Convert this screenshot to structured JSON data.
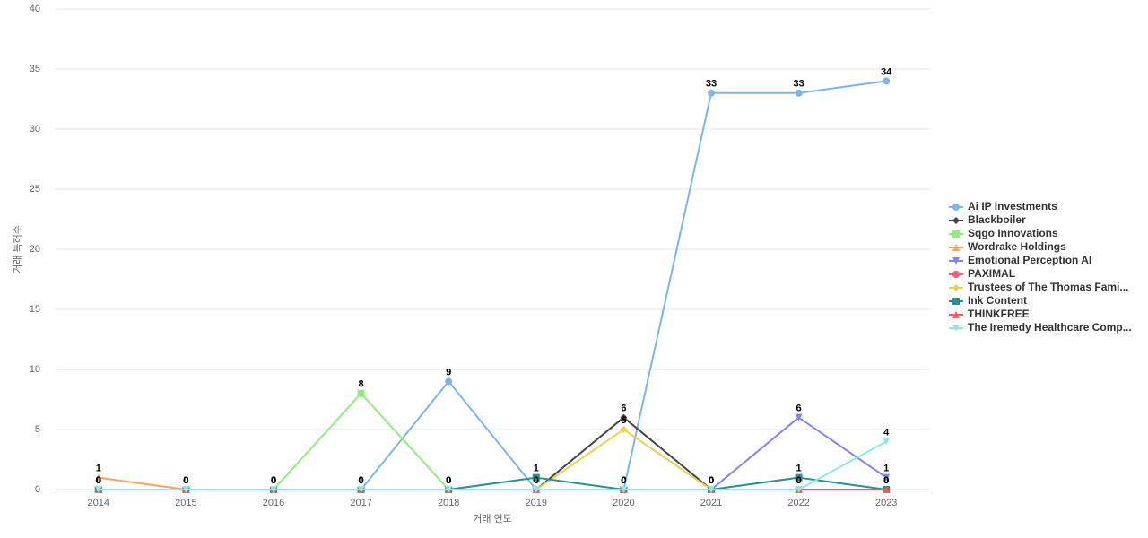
{
  "chart_data": {
    "type": "line",
    "x_label": "거래 연도",
    "y_label": "거래 특허수",
    "categories": [
      "2014",
      "2015",
      "2016",
      "2017",
      "2018",
      "2019",
      "2020",
      "2021",
      "2022",
      "2023"
    ],
    "ylim": [
      0,
      40
    ],
    "yticks": [
      0,
      5,
      10,
      15,
      20,
      25,
      30,
      35,
      40
    ],
    "grid": true,
    "legend": "right",
    "series": [
      {
        "name": "Ai IP Investments",
        "color": "#7cb5ec",
        "marker": "circle",
        "values": [
          0,
          0,
          0,
          0,
          9,
          0,
          0,
          33,
          33,
          34
        ]
      },
      {
        "name": "Blackboiler",
        "color": "#434348",
        "marker": "diamond",
        "values": [
          0,
          0,
          0,
          0,
          0,
          0,
          6,
          0,
          0,
          0
        ]
      },
      {
        "name": "Sqgo Innovations",
        "color": "#90ed7d",
        "marker": "square",
        "values": [
          0,
          0,
          0,
          8,
          0,
          0,
          0,
          0,
          0,
          0
        ]
      },
      {
        "name": "Wordrake Holdings",
        "color": "#f7a35c",
        "marker": "triangle",
        "values": [
          1,
          0,
          0,
          0,
          0,
          0,
          0,
          0,
          0,
          0
        ]
      },
      {
        "name": "Emotional Perception AI",
        "color": "#8085e9",
        "marker": "triangle-down",
        "values": [
          0,
          0,
          0,
          0,
          0,
          0,
          0,
          0,
          6,
          1
        ]
      },
      {
        "name": "PAXIMAL",
        "color": "#f15c80",
        "marker": "circle",
        "values": [
          0,
          0,
          0,
          0,
          0,
          0,
          0,
          0,
          0,
          0
        ]
      },
      {
        "name": "Trustees of The Thomas Fami...",
        "color": "#e4d354",
        "marker": "diamond",
        "values": [
          0,
          0,
          0,
          0,
          0,
          0,
          5,
          0,
          0,
          0
        ]
      },
      {
        "name": "Ink Content",
        "color": "#2b908f",
        "marker": "square",
        "values": [
          0,
          0,
          0,
          0,
          0,
          1,
          0,
          0,
          1,
          0
        ]
      },
      {
        "name": "THINKFREE",
        "color": "#f45b5b",
        "marker": "triangle",
        "values": [
          0,
          0,
          0,
          0,
          0,
          0,
          0,
          0,
          0,
          0
        ]
      },
      {
        "name": "The Iremedy Healthcare Comp...",
        "color": "#91e8e1",
        "marker": "triangle-down",
        "values": [
          0,
          0,
          0,
          0,
          0,
          0,
          0,
          0,
          0,
          4
        ]
      }
    ]
  }
}
